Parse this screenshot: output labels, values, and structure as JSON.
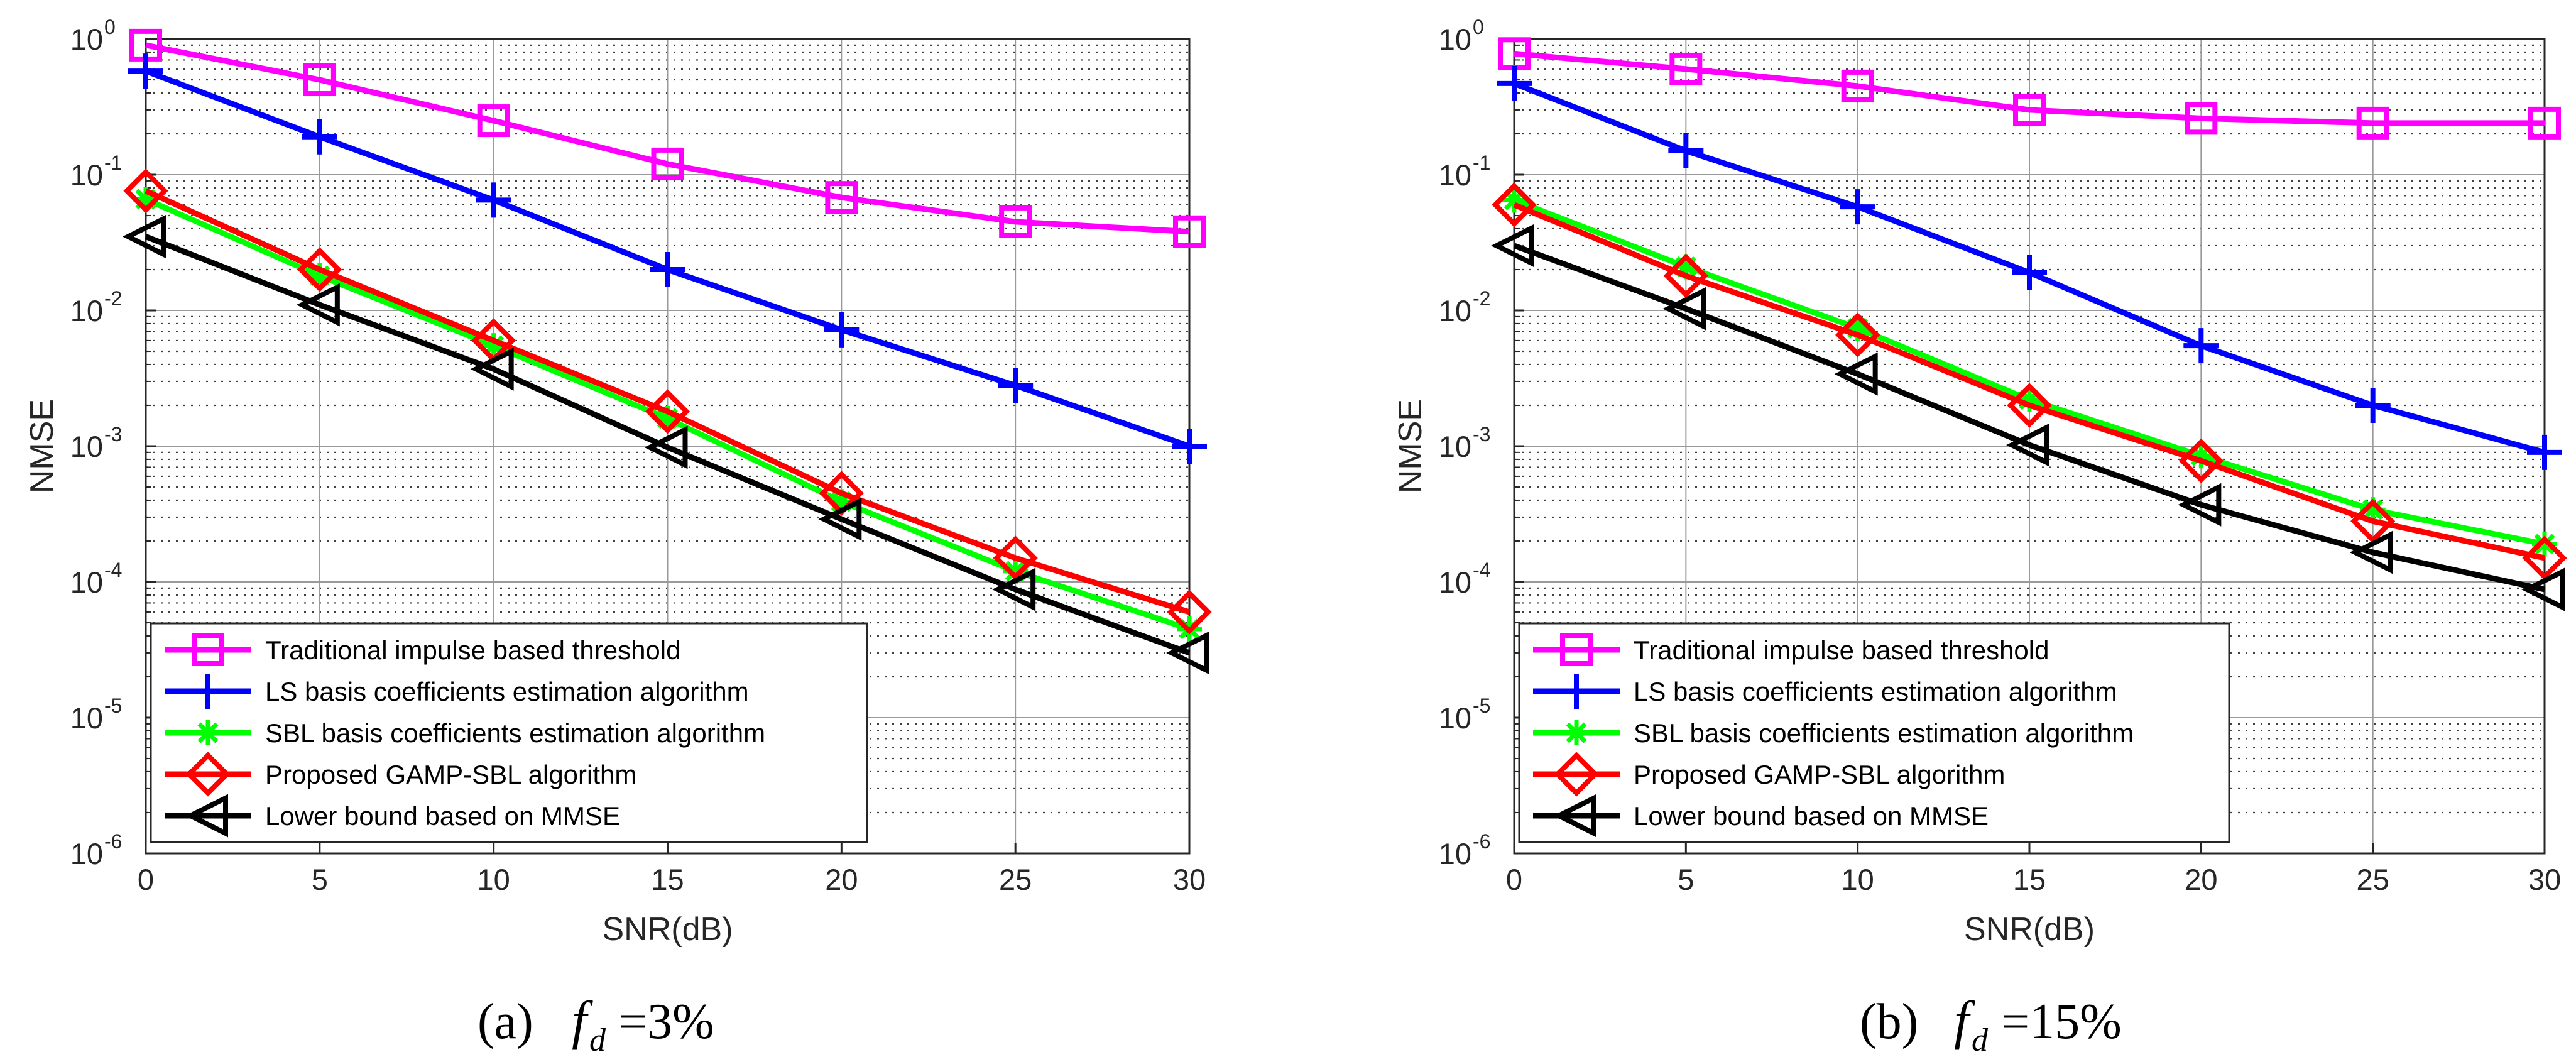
{
  "chart_data": [
    {
      "type": "line",
      "yscale": "log",
      "xlabel": "SNR(dB)",
      "ylabel": "NMSE",
      "xlim": [
        0,
        30
      ],
      "ylim": [
        1e-06,
        1
      ],
      "x": [
        0,
        5,
        10,
        15,
        20,
        25,
        30
      ],
      "xticks": [
        "0",
        "5",
        "10",
        "15",
        "20",
        "25",
        "30"
      ],
      "yticks": [
        {
          "base": "10",
          "exp": "0"
        },
        {
          "base": "10",
          "exp": "-1"
        },
        {
          "base": "10",
          "exp": "-2"
        },
        {
          "base": "10",
          "exp": "-3"
        },
        {
          "base": "10",
          "exp": "-4"
        },
        {
          "base": "10",
          "exp": "-5"
        },
        {
          "base": "10",
          "exp": "-6"
        }
      ],
      "legend_position": "bottom-left",
      "caption": {
        "label": "(a)",
        "symbol": "f",
        "subscript": "d",
        "rhs": "=3%"
      },
      "series": [
        {
          "name": "Traditional impulse based threshold",
          "color": "#ff00ff",
          "marker": "square",
          "values": [
            0.9,
            0.5,
            0.25,
            0.12,
            0.068,
            0.045,
            0.038
          ]
        },
        {
          "name": "LS basis coefficients estimation algorithm",
          "color": "#0000ff",
          "marker": "plus",
          "values": [
            0.58,
            0.19,
            0.065,
            0.02,
            0.0072,
            0.0028,
            0.001
          ]
        },
        {
          "name": "SBL basis coefficients estimation algorithm",
          "color": "#00ff00",
          "marker": "asterisk",
          "values": [
            0.066,
            0.018,
            0.0055,
            0.0016,
            0.00039,
            0.00012,
            4.5e-05
          ]
        },
        {
          "name": "Proposed GAMP-SBL algorithm",
          "color": "#ff0000",
          "marker": "diamond",
          "values": [
            0.076,
            0.02,
            0.006,
            0.0018,
            0.00045,
            0.00015,
            6e-05
          ]
        },
        {
          "name": "Lower bound based on MMSE",
          "color": "#000000",
          "marker": "triangle-left",
          "values": [
            0.035,
            0.011,
            0.0037,
            0.00098,
            0.00029,
            8.8e-05,
            3e-05
          ]
        }
      ]
    },
    {
      "type": "line",
      "yscale": "log",
      "xlabel": "SNR(dB)",
      "ylabel": "NMSE",
      "xlim": [
        0,
        30
      ],
      "ylim": [
        1e-06,
        1
      ],
      "x": [
        0,
        5,
        10,
        15,
        20,
        25,
        30
      ],
      "xticks": [
        "0",
        "5",
        "10",
        "15",
        "20",
        "25",
        "30"
      ],
      "yticks": [
        {
          "base": "10",
          "exp": "0"
        },
        {
          "base": "10",
          "exp": "-1"
        },
        {
          "base": "10",
          "exp": "-2"
        },
        {
          "base": "10",
          "exp": "-3"
        },
        {
          "base": "10",
          "exp": "-4"
        },
        {
          "base": "10",
          "exp": "-5"
        },
        {
          "base": "10",
          "exp": "-6"
        }
      ],
      "legend_position": "bottom-left",
      "caption": {
        "label": "(b)",
        "symbol": "f",
        "subscript": "d",
        "rhs": "=15%"
      },
      "series": [
        {
          "name": "Traditional impulse based threshold",
          "color": "#ff00ff",
          "marker": "square",
          "values": [
            0.78,
            0.6,
            0.45,
            0.3,
            0.26,
            0.24,
            0.24
          ]
        },
        {
          "name": "LS basis coefficients estimation algorithm",
          "color": "#0000ff",
          "marker": "plus",
          "values": [
            0.47,
            0.15,
            0.058,
            0.019,
            0.0055,
            0.002,
            0.0009
          ]
        },
        {
          "name": "SBL basis coefficients estimation algorithm",
          "color": "#00ff00",
          "marker": "asterisk",
          "values": [
            0.065,
            0.021,
            0.0074,
            0.0022,
            0.00085,
            0.00034,
            0.00019
          ]
        },
        {
          "name": "Proposed GAMP-SBL algorithm",
          "color": "#ff0000",
          "marker": "diamond",
          "values": [
            0.06,
            0.018,
            0.0066,
            0.002,
            0.00078,
            0.00028,
            0.00015
          ]
        },
        {
          "name": "Lower bound based on MMSE",
          "color": "#000000",
          "marker": "triangle-left",
          "values": [
            0.03,
            0.0103,
            0.0034,
            0.00102,
            0.00037,
            0.000165,
            8.8e-05
          ]
        }
      ]
    }
  ]
}
